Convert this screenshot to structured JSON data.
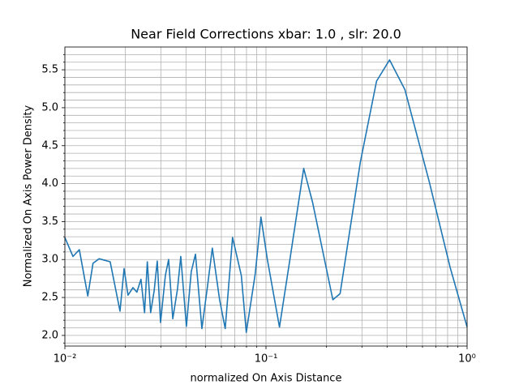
{
  "chart_data": {
    "type": "line",
    "title": "Near Field Corrections xbar: 1.0 , slr: 20.0",
    "x_label": "normalized On Axis Distance",
    "y_label": "Normalized On Axis Power Density",
    "x_scale": "log",
    "grid": true,
    "xlim": [
      0.01,
      1
    ],
    "ylim": [
      1.86,
      5.8
    ],
    "xticks": [
      {
        "value": 0.01,
        "label": "10⁻²"
      },
      {
        "value": 0.1,
        "label": "10⁻¹"
      },
      {
        "value": 1,
        "label": "10⁰"
      }
    ],
    "xminorticks": [
      0.02,
      0.03,
      0.04,
      0.05,
      0.06,
      0.07,
      0.08,
      0.09,
      0.2,
      0.3,
      0.4,
      0.5,
      0.6,
      0.7,
      0.8,
      0.9
    ],
    "yticks": [
      {
        "value": 2,
        "label": "2.0"
      },
      2.5,
      {
        "value": 3,
        "label": "3.0"
      },
      3.5,
      {
        "value": 4,
        "label": "4.0"
      },
      4.5,
      {
        "value": 5,
        "label": "5.0"
      },
      5.5
    ],
    "yminorticks": [
      1.9,
      2.1,
      2.2,
      2.3,
      2.4,
      2.6,
      2.7,
      2.8,
      2.9,
      3.1,
      3.2,
      3.3,
      3.4,
      3.6,
      3.7,
      3.8,
      3.9,
      4.1,
      4.2,
      4.3,
      4.4,
      4.6,
      4.7,
      4.8,
      4.9,
      5.1,
      5.2,
      5.3,
      5.4,
      5.6,
      5.7
    ],
    "series": [
      {
        "color": "#1f77b4",
        "x": [
          0.01,
          0.01097,
          0.0118,
          0.013,
          0.0138,
          0.0148,
          0.0168,
          0.0188,
          0.0197,
          0.0206,
          0.0218,
          0.0228,
          0.0239,
          0.0249,
          0.0257,
          0.0267,
          0.0278,
          0.0288,
          0.0299,
          0.0316,
          0.0328,
          0.0344,
          0.0363,
          0.0377,
          0.0402,
          0.0425,
          0.0446,
          0.048,
          0.0512,
          0.0541,
          0.0588,
          0.0627,
          0.0682,
          0.0754,
          0.0798,
          0.0884,
          0.0944,
          0.1016,
          0.1167,
          0.1315,
          0.154,
          0.1706,
          0.215,
          0.2336,
          0.2944,
          0.3546,
          0.4115,
          0.4904,
          0.649,
          0.8228,
          1.0
        ],
        "values": [
          3.29,
          3.04,
          3.13,
          2.52,
          2.95,
          3.01,
          2.97,
          2.32,
          2.88,
          2.53,
          2.63,
          2.57,
          2.74,
          2.3,
          2.97,
          2.3,
          2.59,
          2.98,
          2.17,
          2.79,
          3.0,
          2.22,
          2.61,
          3.04,
          2.12,
          2.84,
          3.07,
          2.09,
          2.65,
          3.15,
          2.47,
          2.09,
          3.29,
          2.79,
          2.04,
          2.81,
          3.56,
          3.0,
          2.11,
          3.0,
          4.2,
          3.75,
          2.47,
          2.55,
          4.28,
          5.35,
          5.63,
          5.24,
          4.02,
          2.9,
          2.11
        ]
      }
    ]
  }
}
